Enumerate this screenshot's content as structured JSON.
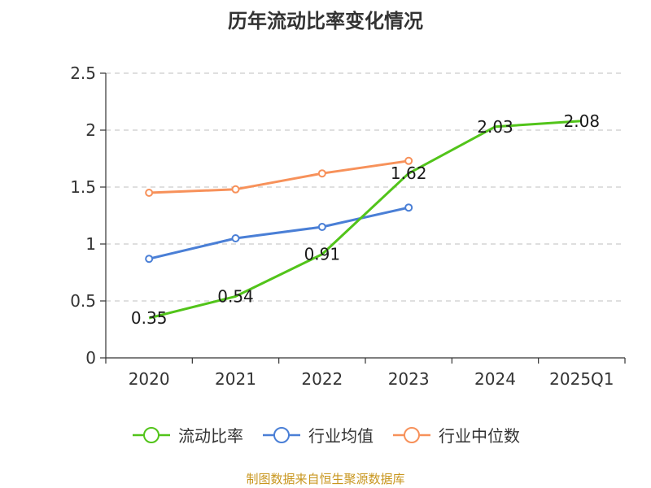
{
  "chart_data": {
    "type": "line",
    "title": "历年流动比率变化情况",
    "categories": [
      "2020",
      "2021",
      "2022",
      "2023",
      "2024",
      "2025Q1"
    ],
    "ylim": [
      0,
      2.5
    ],
    "yticks": [
      "0",
      "0.5",
      "1",
      "1.5",
      "2",
      "2.5"
    ],
    "ytick_values": [
      0,
      0.5,
      1,
      1.5,
      2,
      2.5
    ],
    "grid": true,
    "legend_position": "bottom-center",
    "series": [
      {
        "name": "流动比率",
        "color": "#52c41a",
        "labeled": true,
        "values": [
          0.35,
          0.54,
          0.91,
          1.62,
          2.03,
          2.08
        ],
        "labels": [
          "0.35",
          "0.54",
          "0.91",
          "1.62",
          "2.03",
          "2.08"
        ]
      },
      {
        "name": "行业均值",
        "color": "#4a7fd6",
        "labeled": false,
        "values": [
          0.87,
          1.05,
          1.15,
          1.32,
          null,
          null
        ]
      },
      {
        "name": "行业中位数",
        "color": "#f7915a",
        "labeled": false,
        "values": [
          1.45,
          1.48,
          1.62,
          1.73,
          null,
          null
        ]
      }
    ]
  },
  "footer": {
    "source": "制图数据来自恒生聚源数据库"
  }
}
